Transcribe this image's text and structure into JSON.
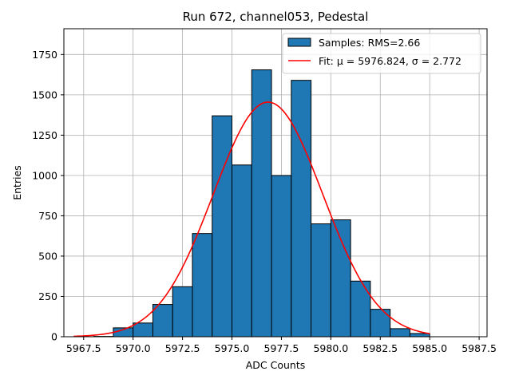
{
  "chart_data": {
    "type": "bar",
    "title": "Run 672, channel053, Pedestal",
    "xlabel": "ADC Counts",
    "ylabel": "Entries",
    "xlim": [
      5966.5,
      5987.9
    ],
    "ylim": [
      0,
      1910
    ],
    "x_ticks": [
      5967.5,
      5970.0,
      5972.5,
      5975.0,
      5977.5,
      5980.0,
      5982.5,
      5985.0,
      5987.5
    ],
    "x_tick_labels": [
      "5967.5",
      "5970.0",
      "5972.5",
      "5975.0",
      "5977.5",
      "5980.0",
      "5982.5",
      "5985.0",
      "5987.5"
    ],
    "y_ticks": [
      0,
      250,
      500,
      750,
      1000,
      1250,
      1500,
      1750
    ],
    "y_tick_labels": [
      "0",
      "250",
      "500",
      "750",
      "1000",
      "1250",
      "1500",
      "1750"
    ],
    "grid": true,
    "legend_position": "top-right",
    "histogram": {
      "name": "Samples: RMS=2.66",
      "color": "#1f77b4",
      "edge_color": "#000000",
      "bin_edges": [
        5967.0,
        5968.0,
        5969.0,
        5970.0,
        5971.0,
        5972.0,
        5973.0,
        5974.0,
        5975.0,
        5976.0,
        5977.0,
        5978.0,
        5979.0,
        5980.0,
        5981.0,
        5982.0,
        5983.0,
        5984.0,
        5985.0
      ],
      "counts": [
        0,
        2,
        55,
        85,
        200,
        310,
        640,
        1370,
        1065,
        1655,
        1000,
        1590,
        700,
        725,
        345,
        170,
        50,
        20
      ]
    },
    "fit": {
      "name": "Fit: μ = 5976.824, σ = 2.772",
      "color": "#ff0000",
      "mu": 5976.824,
      "sigma": 2.772,
      "amplitude": 1455,
      "x_range": [
        5967.0,
        5985.0
      ]
    }
  }
}
